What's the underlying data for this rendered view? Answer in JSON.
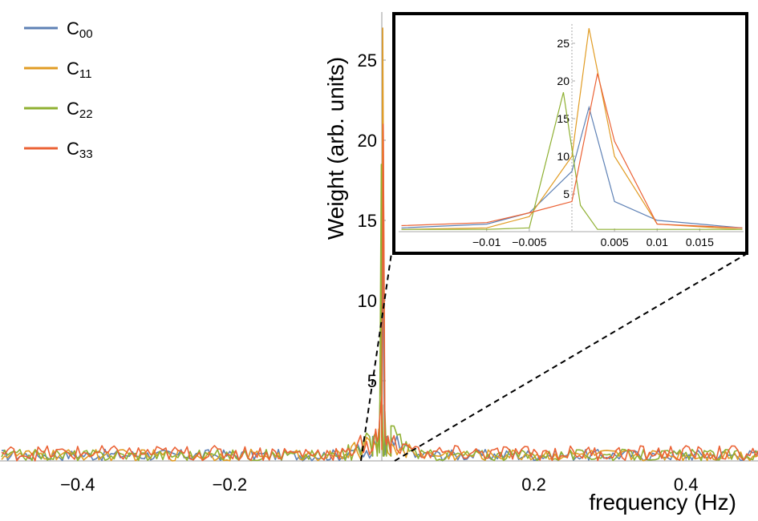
{
  "chart_data": {
    "type": "line",
    "xlabel": "frequency (Hz)",
    "ylabel": "Weight (arb. units)",
    "xlim": [
      -0.5,
      0.5
    ],
    "ylim": [
      0,
      28
    ],
    "x_ticks": [
      -0.4,
      -0.2,
      0.2,
      0.4
    ],
    "x_tick_labels": [
      "−0.4",
      "−0.2",
      "0.2",
      "0.4"
    ],
    "y_ticks": [
      5,
      10,
      15,
      20,
      25
    ],
    "y_tick_labels": [
      "5",
      "10",
      "15",
      "20",
      "25"
    ],
    "legend_position": "top-left",
    "noise_floor": 0.4,
    "series": [
      {
        "name": "C",
        "subscript": "00",
        "color": "#5e81b5",
        "peak": 16.5,
        "x": [
          -0.02,
          -0.01,
          -0.005,
          0,
          0.002,
          0.005,
          0.01,
          0.02
        ],
        "values": [
          0.5,
          1.0,
          2.5,
          8.0,
          16.5,
          4.0,
          1.5,
          0.5
        ]
      },
      {
        "name": "C",
        "subscript": "11",
        "color": "#e19c24",
        "peak": 27.0,
        "x": [
          -0.02,
          -0.01,
          -0.005,
          0,
          0.002,
          0.005,
          0.01,
          0.02
        ],
        "values": [
          0.3,
          0.5,
          2.0,
          10.0,
          27.0,
          10.0,
          1.0,
          0.3
        ]
      },
      {
        "name": "C",
        "subscript": "22",
        "color": "#8fb032",
        "peak": 18.5,
        "x": [
          -0.02,
          -0.01,
          -0.005,
          -0.001,
          0.001,
          0.003,
          0.005,
          0.01,
          0.02
        ],
        "values": [
          0.3,
          0.3,
          0.5,
          18.5,
          3.5,
          0.3,
          0.3,
          0.3,
          0.3
        ]
      },
      {
        "name": "C",
        "subscript": "33",
        "color": "#eb6235",
        "peak": 21.0,
        "x": [
          -0.02,
          -0.01,
          -0.005,
          0,
          0.003,
          0.005,
          0.01,
          0.02
        ],
        "values": [
          0.8,
          1.2,
          2.5,
          4.0,
          21.0,
          12.0,
          1.0,
          0.5
        ]
      }
    ],
    "inset": {
      "xlim": [
        -0.02,
        0.02
      ],
      "ylim": [
        0,
        28
      ],
      "x_ticks": [
        -0.01,
        -0.005,
        0.005,
        0.01,
        0.015
      ],
      "x_tick_labels": [
        "−0.01",
        "−0.005",
        "0.005",
        "0.01",
        "0.015"
      ],
      "y_ticks": [
        5,
        10,
        15,
        20,
        25
      ],
      "y_tick_labels": [
        "5",
        "10",
        "15",
        "20",
        "25"
      ]
    }
  }
}
